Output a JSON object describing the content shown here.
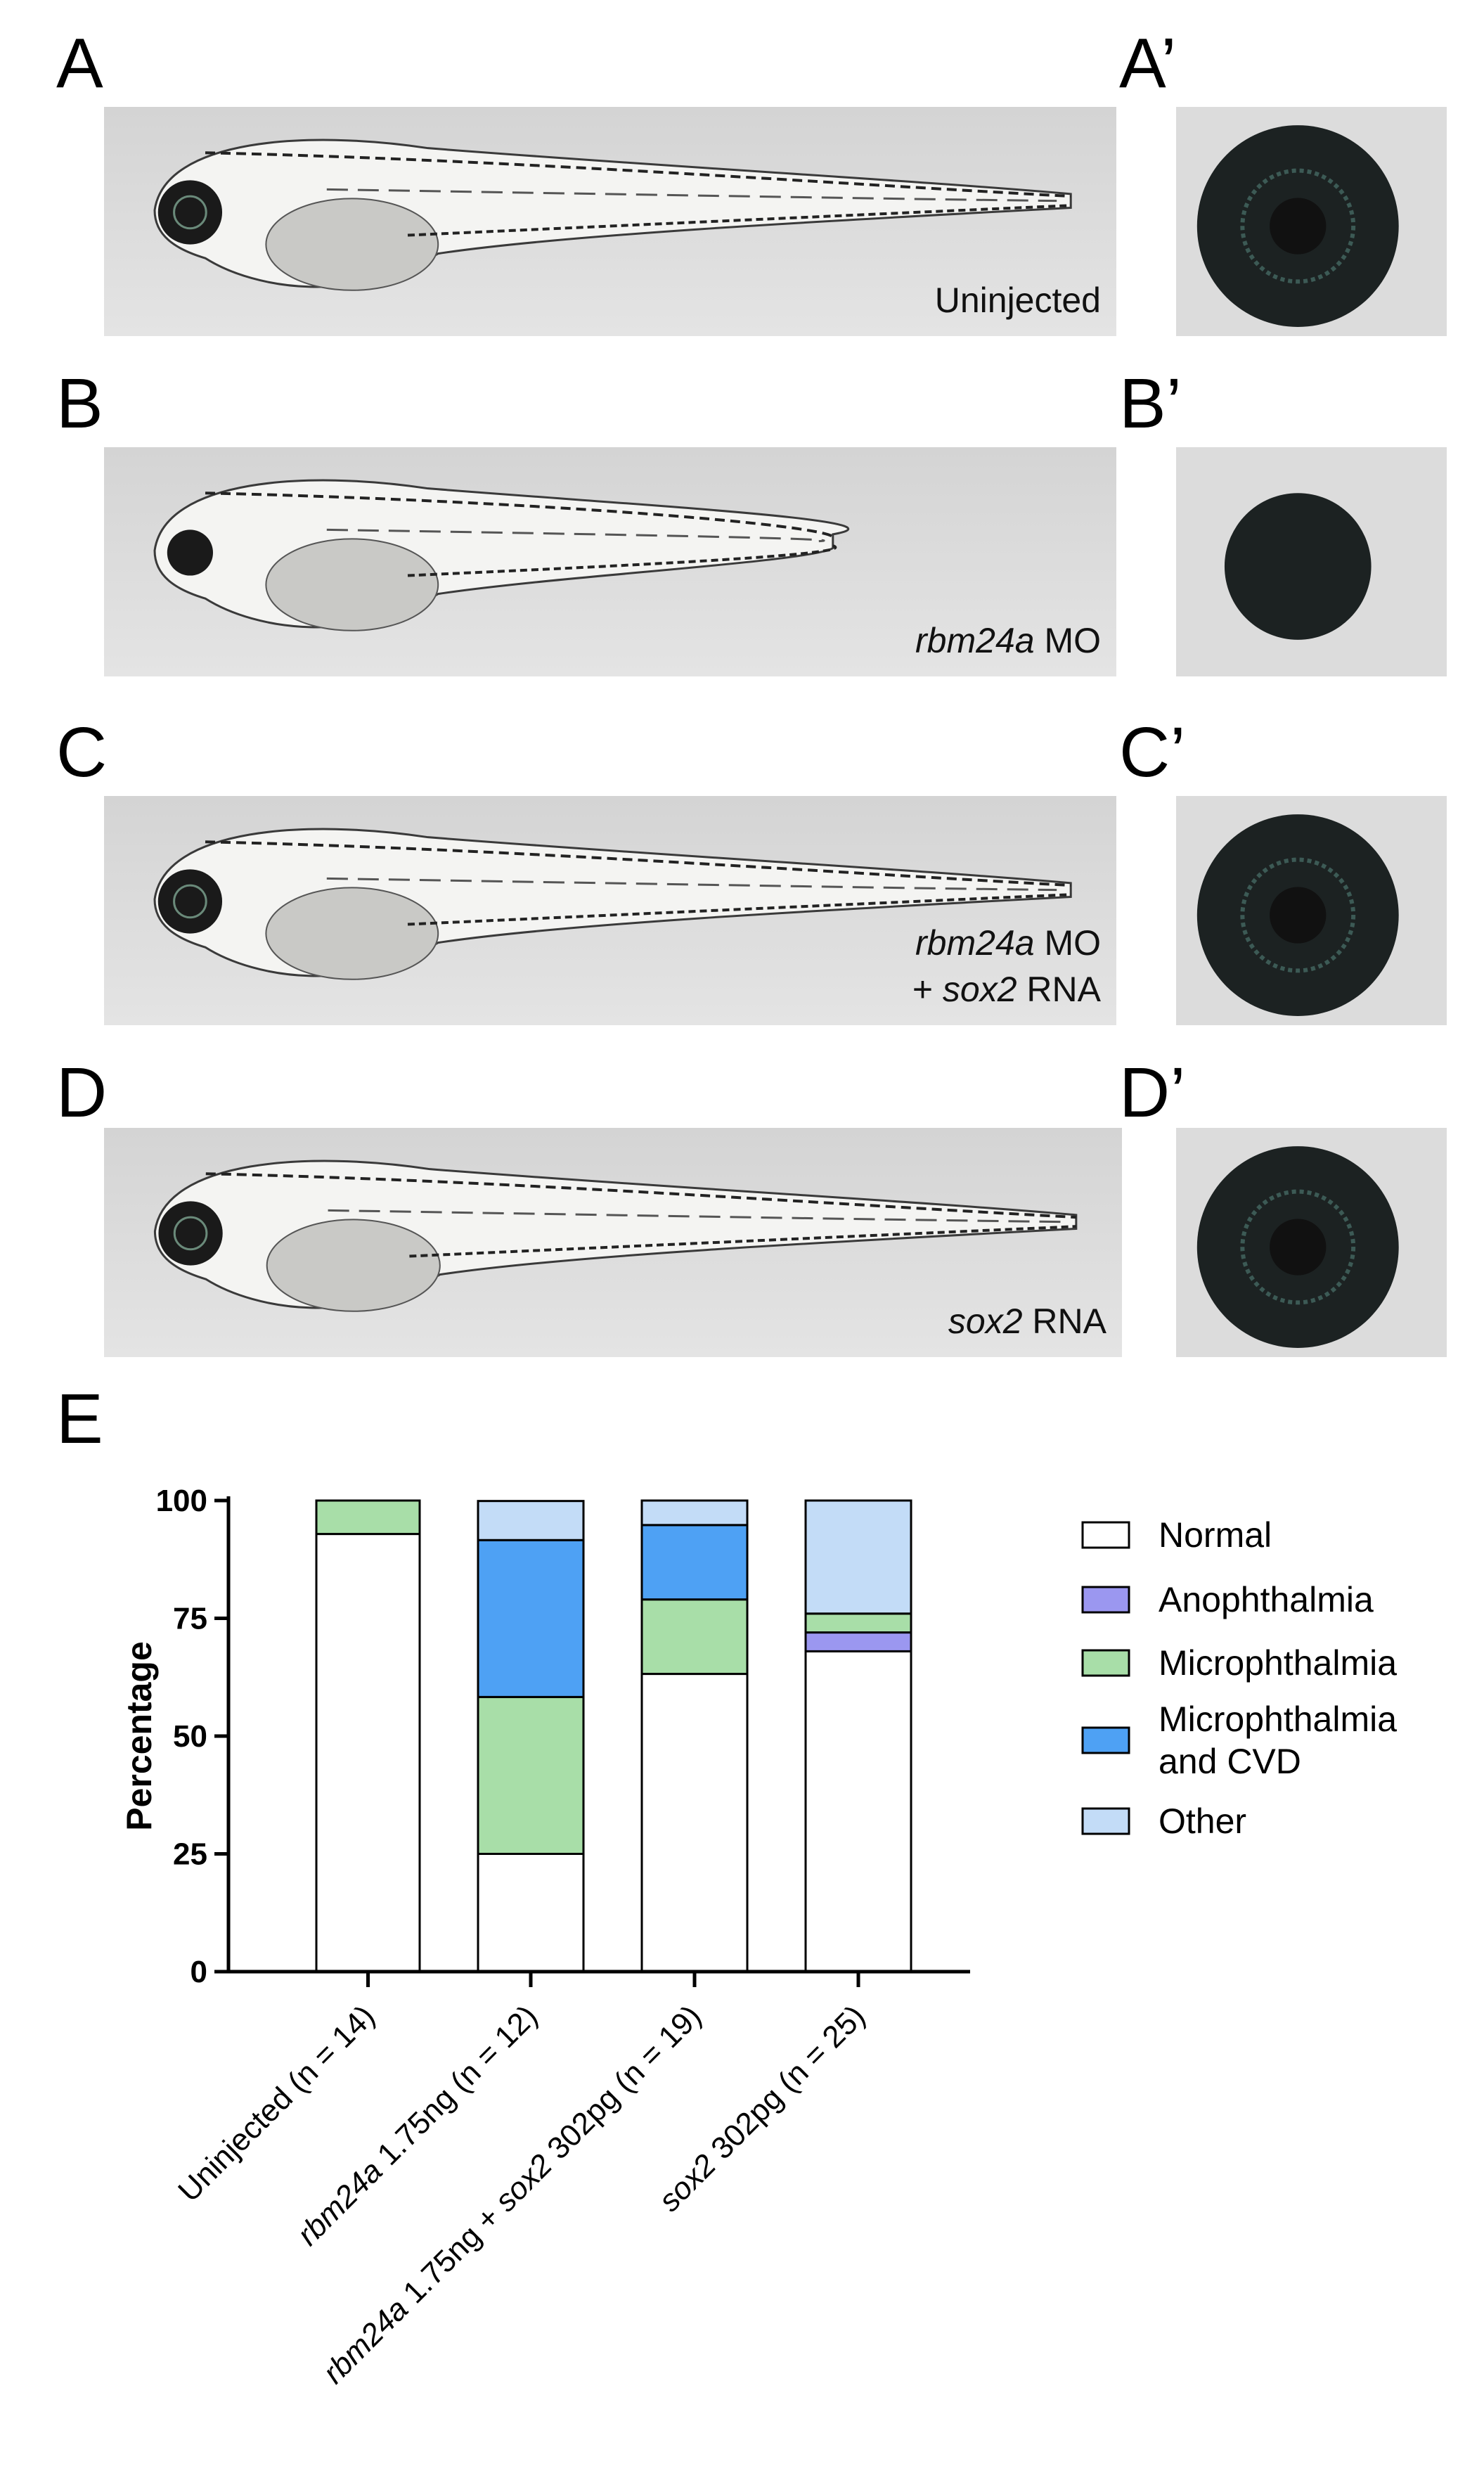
{
  "panels": [
    {
      "label": "A",
      "zoom_label": "A’",
      "caption_lines": [
        [
          {
            "t": "Uninjected",
            "i": false
          }
        ]
      ]
    },
    {
      "label": "B",
      "zoom_label": "B’",
      "caption_lines": [
        [
          {
            "t": "rbm24a",
            "i": true
          },
          {
            "t": " MO",
            "i": false
          }
        ]
      ]
    },
    {
      "label": "C",
      "zoom_label": "C’",
      "caption_lines": [
        [
          {
            "t": "rbm24a",
            "i": true
          },
          {
            "t": " MO",
            "i": false
          }
        ],
        [
          {
            "t": "+ ",
            "i": false
          },
          {
            "t": "sox2",
            "i": true
          },
          {
            "t": " RNA",
            "i": false
          }
        ]
      ]
    },
    {
      "label": "D",
      "zoom_label": "D’",
      "caption_lines": [
        [
          {
            "t": "sox2",
            "i": true
          },
          {
            "t": " RNA",
            "i": false
          }
        ]
      ]
    }
  ],
  "chart_panel_label": "E",
  "chart_data": {
    "type": "bar",
    "stacked": true,
    "ylabel": "Percentage",
    "ylim": [
      0,
      100
    ],
    "yticks": [
      0,
      25,
      50,
      75,
      100
    ],
    "categories": [
      [
        {
          "t": "Uninjected (n = 14)",
          "i": false
        }
      ],
      [
        {
          "t": "rbm24a",
          "i": true
        },
        {
          "t": " 1.75ng (n = 12)",
          "i": false
        }
      ],
      [
        {
          "t": "rbm24a",
          "i": true
        },
        {
          "t": " 1.75ng + ",
          "i": false
        },
        {
          "t": "sox2",
          "i": true
        },
        {
          "t": " 302pg (n = 19)",
          "i": false
        }
      ],
      [
        {
          "t": "sox2",
          "i": true
        },
        {
          "t": " 302pg (n = 25)",
          "i": false
        }
      ]
    ],
    "series": [
      {
        "name": "Normal",
        "lines": [
          "Normal"
        ],
        "color": "#ffffff",
        "values": [
          92.9,
          25.0,
          63.2,
          68.0
        ]
      },
      {
        "name": "Anophthalmia",
        "lines": [
          "Anophthalmia"
        ],
        "color": "#9b97f0",
        "values": [
          0,
          0,
          0,
          4.0
        ]
      },
      {
        "name": "Microphthalmia",
        "lines": [
          "Microphthalmia"
        ],
        "color": "#a8dea8",
        "values": [
          7.1,
          33.3,
          15.8,
          4.0
        ]
      },
      {
        "name": "Microphthalmia and CVD",
        "lines": [
          "Microphthalmia",
          "and CVD"
        ],
        "color": "#4ea1f4",
        "values": [
          0,
          33.3,
          15.8,
          0
        ]
      },
      {
        "name": "Other",
        "lines": [
          "Other"
        ],
        "color": "#c3dcf7",
        "values": [
          0,
          8.3,
          5.2,
          24.0
        ]
      }
    ],
    "legend_position": "right",
    "grid": false
  }
}
